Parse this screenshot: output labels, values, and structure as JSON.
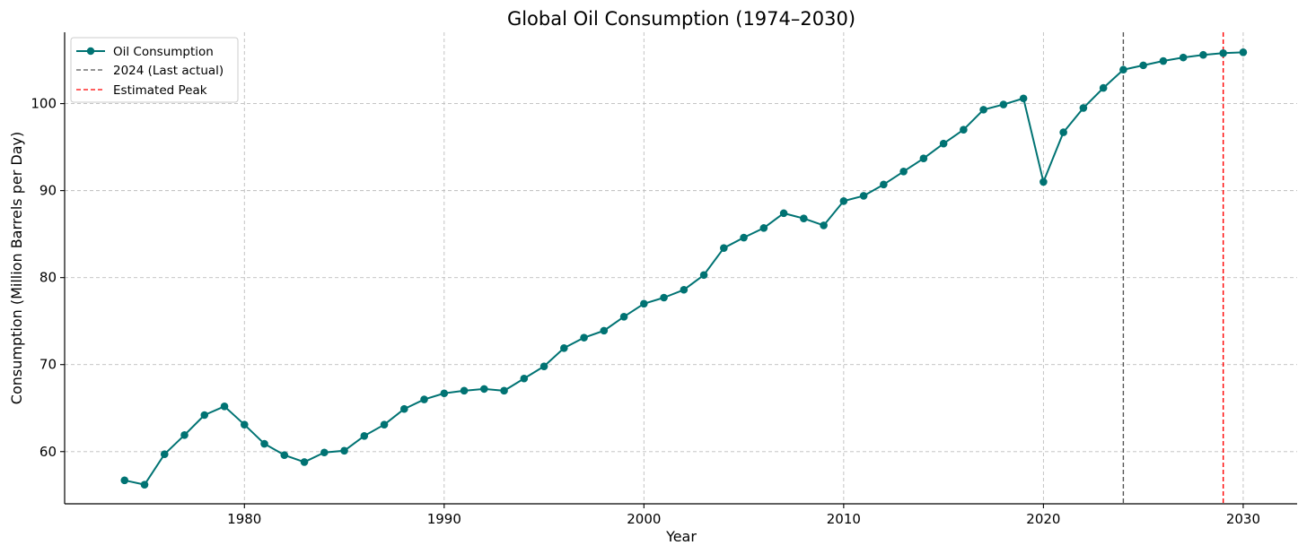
{
  "chart_data": {
    "type": "line",
    "title": "Global Oil Consumption (1974–2030)",
    "xlabel": "Year",
    "ylabel": "Consumption (Million Barrels per Day)",
    "xlim": [
      1971,
      2032.7
    ],
    "ylim": [
      54,
      108.2
    ],
    "xticks": [
      1980,
      1990,
      2000,
      2010,
      2020,
      2030
    ],
    "yticks": [
      60,
      70,
      80,
      90,
      100
    ],
    "grid": true,
    "legend_position": "top-left",
    "colors": {
      "series": "#007373",
      "last_actual": "#555555",
      "peak": "#ff0000"
    },
    "series": [
      {
        "name": "Oil Consumption",
        "x": [
          1974,
          1975,
          1976,
          1977,
          1978,
          1979,
          1980,
          1981,
          1982,
          1983,
          1984,
          1985,
          1986,
          1987,
          1988,
          1989,
          1990,
          1991,
          1992,
          1993,
          1994,
          1995,
          1996,
          1997,
          1998,
          1999,
          2000,
          2001,
          2002,
          2003,
          2004,
          2005,
          2006,
          2007,
          2008,
          2009,
          2010,
          2011,
          2012,
          2013,
          2014,
          2015,
          2016,
          2017,
          2018,
          2019,
          2020,
          2021,
          2022,
          2023,
          2024,
          2025,
          2026,
          2027,
          2028,
          2029,
          2030
        ],
        "values": [
          56.7,
          56.2,
          59.7,
          61.9,
          64.2,
          65.2,
          63.1,
          60.9,
          59.6,
          58.8,
          59.9,
          60.1,
          61.8,
          63.1,
          64.9,
          66.0,
          66.7,
          67.0,
          67.2,
          67.0,
          68.4,
          69.8,
          71.9,
          73.1,
          73.9,
          75.5,
          77.0,
          77.7,
          78.6,
          80.3,
          83.4,
          84.6,
          85.7,
          87.4,
          86.8,
          86.0,
          88.8,
          89.4,
          90.7,
          92.2,
          93.7,
          95.4,
          97.0,
          99.3,
          99.9,
          100.6,
          91.0,
          96.7,
          99.5,
          101.8,
          103.9,
          104.4,
          104.9,
          105.3,
          105.6,
          105.8,
          105.9
        ]
      }
    ],
    "vlines": [
      {
        "name": "2024 (Last actual)",
        "x": 2024,
        "color": "#555555",
        "style": "dashed"
      },
      {
        "name": "Estimated Peak",
        "x": 2029,
        "color": "#ff0000",
        "style": "dashed"
      }
    ],
    "legend": [
      "Oil Consumption",
      "2024 (Last actual)",
      "Estimated Peak"
    ]
  }
}
